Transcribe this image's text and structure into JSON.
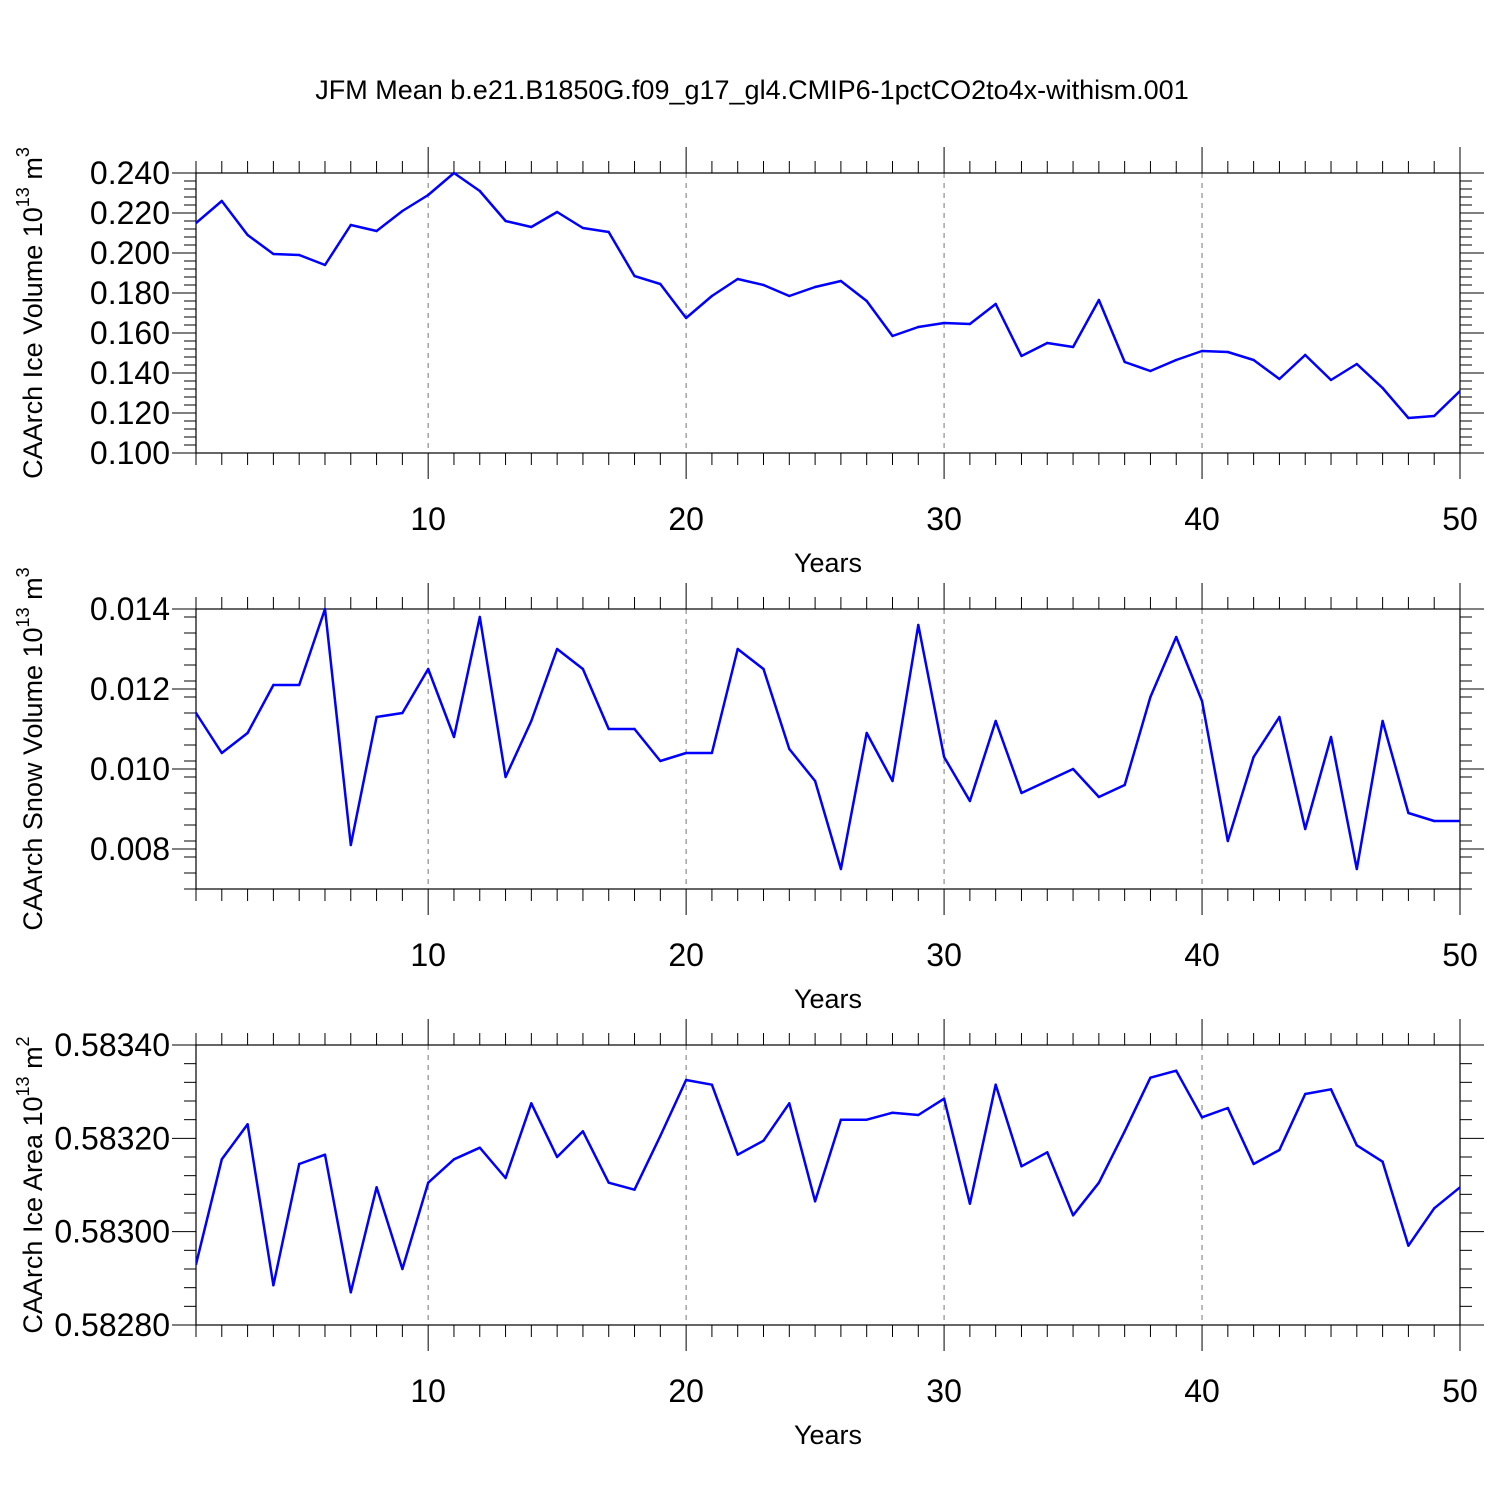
{
  "title": "JFM Mean b.e21.B1850G.f09_g17_gl4.CMIP6-1pctCO2to4x-withism.001",
  "colors": {
    "line": "#0000ff",
    "axis": "#000000",
    "grid": "#777777"
  },
  "chart_data": [
    {
      "type": "line",
      "ylabel": "CAArch Ice Volume 10^13 m^3",
      "ylabel_main": "CAArch Ice Volume 10",
      "ylabel_exp": "13",
      "ylabel_unit": " m",
      "ylabel_unit_exp": "3",
      "xlabel": "Years",
      "xlim": [
        1,
        50
      ],
      "ylim": [
        0.1,
        0.24
      ],
      "xticks": [
        10,
        20,
        30,
        40,
        50
      ],
      "xtick_labels": [
        "10",
        "20",
        "30",
        "40",
        "50"
      ],
      "yticks": [
        0.1,
        0.12,
        0.14,
        0.16,
        0.18,
        0.2,
        0.22,
        0.24
      ],
      "ytick_labels": [
        "0.100",
        "0.120",
        "0.140",
        "0.160",
        "0.180",
        "0.200",
        "0.220",
        "0.240"
      ],
      "ymid_count": 4,
      "grid_x": true,
      "x": [
        1,
        2,
        3,
        4,
        5,
        6,
        7,
        8,
        9,
        10,
        11,
        12,
        13,
        14,
        15,
        16,
        17,
        18,
        19,
        20,
        21,
        22,
        23,
        24,
        25,
        26,
        27,
        28,
        29,
        30,
        31,
        32,
        33,
        34,
        35,
        36,
        37,
        38,
        39,
        40,
        41,
        42,
        43,
        44,
        45,
        46,
        47,
        48,
        49,
        50
      ],
      "values": [
        0.215,
        0.226,
        0.209,
        0.1995,
        0.199,
        0.194,
        0.214,
        0.211,
        0.221,
        0.229,
        0.24,
        0.231,
        0.216,
        0.213,
        0.2205,
        0.2125,
        0.2105,
        0.1885,
        0.1845,
        0.1675,
        0.1785,
        0.187,
        0.184,
        0.1785,
        0.183,
        0.186,
        0.176,
        0.1585,
        0.163,
        0.165,
        0.1645,
        0.1745,
        0.1485,
        0.155,
        0.153,
        0.1765,
        0.1455,
        0.141,
        0.1465,
        0.151,
        0.1505,
        0.1465,
        0.137,
        0.149,
        0.1365,
        0.1445,
        0.1325,
        0.1175,
        0.1185,
        0.131
      ]
    },
    {
      "type": "line",
      "ylabel": "CAArch Snow Volume 10^13 m^3",
      "ylabel_main": "CAArch Snow Volume 10",
      "ylabel_exp": "13",
      "ylabel_unit": " m",
      "ylabel_unit_exp": "3",
      "xlabel": "Years",
      "xlim": [
        1,
        50
      ],
      "ylim": [
        0.007,
        0.014
      ],
      "xticks": [
        10,
        20,
        30,
        40,
        50
      ],
      "xtick_labels": [
        "10",
        "20",
        "30",
        "40",
        "50"
      ],
      "yticks": [
        0.008,
        0.01,
        0.012,
        0.014
      ],
      "ytick_labels": [
        "0.008",
        "0.010",
        "0.012",
        "0.014"
      ],
      "ymid_count": 4,
      "grid_x": true,
      "x": [
        1,
        2,
        3,
        4,
        5,
        6,
        7,
        8,
        9,
        10,
        11,
        12,
        13,
        14,
        15,
        16,
        17,
        18,
        19,
        20,
        21,
        22,
        23,
        24,
        25,
        26,
        27,
        28,
        29,
        30,
        31,
        32,
        33,
        34,
        35,
        36,
        37,
        38,
        39,
        40,
        41,
        42,
        43,
        44,
        45,
        46,
        47,
        48,
        49,
        50
      ],
      "values": [
        0.0114,
        0.0104,
        0.0109,
        0.0121,
        0.0121,
        0.014,
        0.0081,
        0.0113,
        0.0114,
        0.0125,
        0.0108,
        0.0138,
        0.0098,
        0.0112,
        0.013,
        0.0125,
        0.011,
        0.011,
        0.0102,
        0.0104,
        0.0104,
        0.013,
        0.0125,
        0.0105,
        0.0097,
        0.0075,
        0.0109,
        0.0097,
        0.0136,
        0.0103,
        0.0092,
        0.0112,
        0.0094,
        0.0097,
        0.01,
        0.0093,
        0.0096,
        0.0118,
        0.0133,
        0.0117,
        0.0082,
        0.0103,
        0.0113,
        0.0085,
        0.0108,
        0.0075,
        0.0112,
        0.0089,
        0.0087,
        0.0087
      ]
    },
    {
      "type": "line",
      "ylabel": "CAArch Ice Area 10^13 m^2",
      "ylabel_main": "CAArch Ice Area 10",
      "ylabel_exp": "13",
      "ylabel_unit": " m",
      "ylabel_unit_exp": "2",
      "xlabel": "Years",
      "xlim": [
        1,
        50
      ],
      "ylim": [
        0.5828,
        0.5834
      ],
      "xticks": [
        10,
        20,
        30,
        40,
        50
      ],
      "xtick_labels": [
        "10",
        "20",
        "30",
        "40",
        "50"
      ],
      "yticks": [
        0.5828,
        0.583,
        0.5832,
        0.5834
      ],
      "ytick_labels": [
        "0.58280",
        "0.58300",
        "0.58320",
        "0.58340"
      ],
      "ymid_count": 4,
      "grid_x": true,
      "x": [
        1,
        2,
        3,
        4,
        5,
        6,
        7,
        8,
        9,
        10,
        11,
        12,
        13,
        14,
        15,
        16,
        17,
        18,
        19,
        20,
        21,
        22,
        23,
        24,
        25,
        26,
        27,
        28,
        29,
        30,
        31,
        32,
        33,
        34,
        35,
        36,
        37,
        38,
        39,
        40,
        41,
        42,
        43,
        44,
        45,
        46,
        47,
        48,
        49,
        50
      ],
      "values": [
        0.58293,
        0.583155,
        0.58323,
        0.582885,
        0.583145,
        0.583165,
        0.58287,
        0.583095,
        0.58292,
        0.583105,
        0.583155,
        0.58318,
        0.583115,
        0.583275,
        0.58316,
        0.583215,
        0.583105,
        0.58309,
        0.583205,
        0.583325,
        0.583315,
        0.583165,
        0.583195,
        0.583275,
        0.583065,
        0.58324,
        0.58324,
        0.583255,
        0.58325,
        0.583285,
        0.58306,
        0.583315,
        0.58314,
        0.58317,
        0.583035,
        0.583105,
        0.583215,
        0.58333,
        0.583345,
        0.583245,
        0.583265,
        0.583145,
        0.583175,
        0.583295,
        0.583305,
        0.583185,
        0.58315,
        0.58297,
        0.58305,
        0.583095
      ]
    }
  ]
}
